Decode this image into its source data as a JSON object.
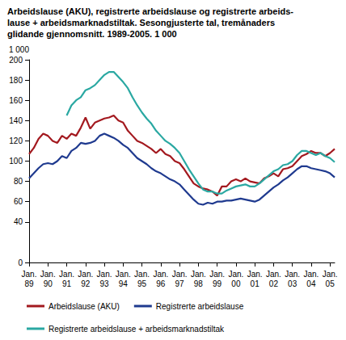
{
  "chart_data": {
    "type": "line",
    "title": "Arbeidslause (AKU), registrerte arbeidslause og registrerte arbeids-\nlause + arbeidsmarknadstiltak. Sesongjusterte tal, tremånaders\nglidande gjennomsnitt. 1989-2005. 1 000",
    "ylabel": "1 000",
    "categories": [
      "Jan.\n89",
      null,
      null,
      null,
      "Jan.\n90",
      null,
      null,
      null,
      "Jan.\n91",
      null,
      null,
      null,
      "Jan.\n92",
      null,
      null,
      null,
      "Jan.\n93",
      null,
      null,
      null,
      "Jan.\n94",
      null,
      null,
      null,
      "Jan.\n95",
      null,
      null,
      null,
      "Jan.\n96",
      null,
      null,
      null,
      "Jan.\n97",
      null,
      null,
      null,
      "Jan.\n98",
      null,
      null,
      null,
      "Jan.\n99",
      null,
      null,
      null,
      "Jan.\n00",
      null,
      null,
      null,
      "Jan.\n01",
      null,
      null,
      null,
      "Jan.\n02",
      null,
      null,
      null,
      "Jan.\n03",
      null,
      null,
      null,
      "Jan.\n04",
      null,
      null,
      null,
      "Jan.\n05",
      null
    ],
    "series": [
      {
        "name": "Arbeidslause (AKU)",
        "color": "#a3191f",
        "values": [
          107,
          113,
          122,
          127,
          125,
          120,
          118,
          125,
          122,
          127,
          125,
          133,
          143,
          132,
          138,
          140,
          142,
          143,
          145,
          140,
          138,
          130,
          125,
          120,
          118,
          115,
          112,
          108,
          112,
          107,
          105,
          100,
          98,
          92,
          85,
          78,
          75,
          73,
          72,
          70,
          66,
          75,
          75,
          80,
          82,
          80,
          83,
          80,
          79,
          78,
          83,
          85,
          88,
          85,
          92,
          93,
          95,
          100,
          105,
          107,
          110,
          108,
          108,
          105,
          108,
          112
        ]
      },
      {
        "name": "Registrerte arbeidslause",
        "color": "#1f3a8f",
        "values": [
          83,
          88,
          93,
          97,
          98,
          97,
          100,
          105,
          103,
          110,
          113,
          118,
          117,
          118,
          120,
          125,
          127,
          125,
          123,
          120,
          116,
          113,
          108,
          103,
          100,
          97,
          93,
          90,
          88,
          85,
          82,
          80,
          77,
          72,
          67,
          62,
          58,
          57,
          59,
          58,
          60,
          60,
          61,
          61,
          62,
          63,
          62,
          61,
          60,
          62,
          66,
          70,
          74,
          77,
          81,
          84,
          88,
          92,
          95,
          95,
          93,
          92,
          91,
          90,
          88,
          84
        ]
      },
      {
        "name": "Registrerte arbeidslause + arbeidsmarknadstiltak",
        "color": "#2aa8a2",
        "values": [
          null,
          null,
          null,
          null,
          null,
          null,
          null,
          null,
          145,
          155,
          160,
          163,
          170,
          172,
          175,
          180,
          185,
          188,
          188,
          183,
          178,
          172,
          163,
          155,
          148,
          142,
          137,
          130,
          125,
          120,
          117,
          113,
          108,
          100,
          92,
          85,
          78,
          72,
          70,
          70,
          68,
          68,
          71,
          73,
          75,
          76,
          77,
          75,
          75,
          78,
          82,
          86,
          90,
          92,
          96,
          97,
          100,
          106,
          110,
          110,
          108,
          106,
          108,
          105,
          103,
          99
        ]
      }
    ],
    "ylim": [
      0,
      200
    ],
    "yticks": [
      0,
      40,
      60,
      80,
      100,
      120,
      140,
      160,
      180,
      200
    ],
    "grid": false,
    "legend": "bottom"
  }
}
